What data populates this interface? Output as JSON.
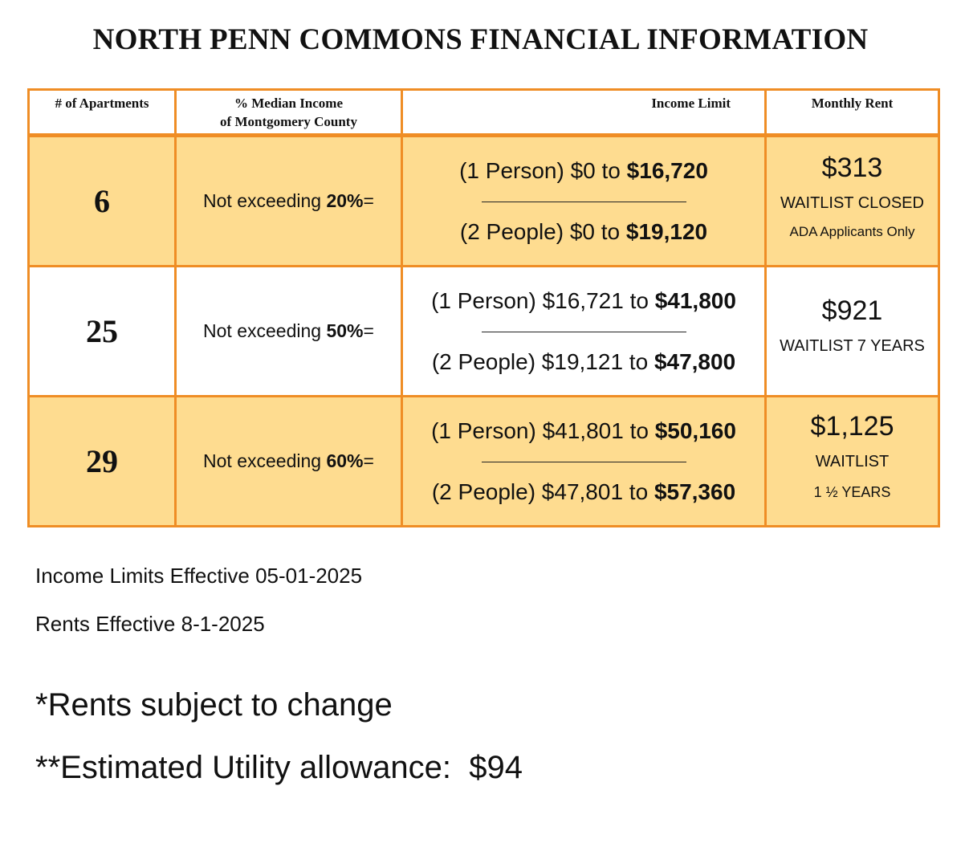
{
  "title": "NORTH PENN COMMONS FINANCIAL INFORMATION",
  "colors": {
    "border": "#ef8d25",
    "shaded_row": "#fedc90",
    "background": "#ffffff"
  },
  "table": {
    "headers": {
      "apartments": "# of Apartments",
      "median_line1": "% Median Income",
      "median_line2": "of Montgomery County",
      "income_limit": "Income Limit",
      "monthly_rent": "Monthly Rent"
    },
    "rows": [
      {
        "apartments": "6",
        "pct_prefix": "Not exceeding ",
        "pct_value": "20%",
        "pct_suffix": "=",
        "one_person_prefix": "(1 Person) $0 to ",
        "one_person_max": "$16,720",
        "two_people_prefix": "(2 People) $0 to ",
        "two_people_max": "$19,120",
        "rent": "$313",
        "rent_note1": "WAITLIST CLOSED",
        "rent_note2": "ADA Applicants Only"
      },
      {
        "apartments": "25",
        "pct_prefix": "Not exceeding ",
        "pct_value": "50%",
        "pct_suffix": "=",
        "one_person_prefix": "(1 Person) $16,721 to ",
        "one_person_max": "$41,800",
        "two_people_prefix": "(2 People) $19,121 to ",
        "two_people_max": "$47,800",
        "rent": "$921",
        "rent_note1": "WAITLIST 7 YEARS"
      },
      {
        "apartments": "29",
        "pct_prefix": "Not exceeding ",
        "pct_value": "60%",
        "pct_suffix": "=",
        "one_person_prefix": "(1 Person) $41,801 to ",
        "one_person_max": "$50,160",
        "two_people_prefix": "(2 People) $47,801 to ",
        "two_people_max": "$57,360",
        "rent": "$1,125",
        "rent_note1": "WAITLIST",
        "rent_note2": "1 ½ YEARS"
      }
    ]
  },
  "effective": {
    "income_limits": "Income Limits Effective 05-01-2025",
    "rents": "Rents Effective 8-1-2025"
  },
  "notes": {
    "rents_change": "*Rents subject to change",
    "utility": "**Estimated Utility allowance:  $94"
  }
}
